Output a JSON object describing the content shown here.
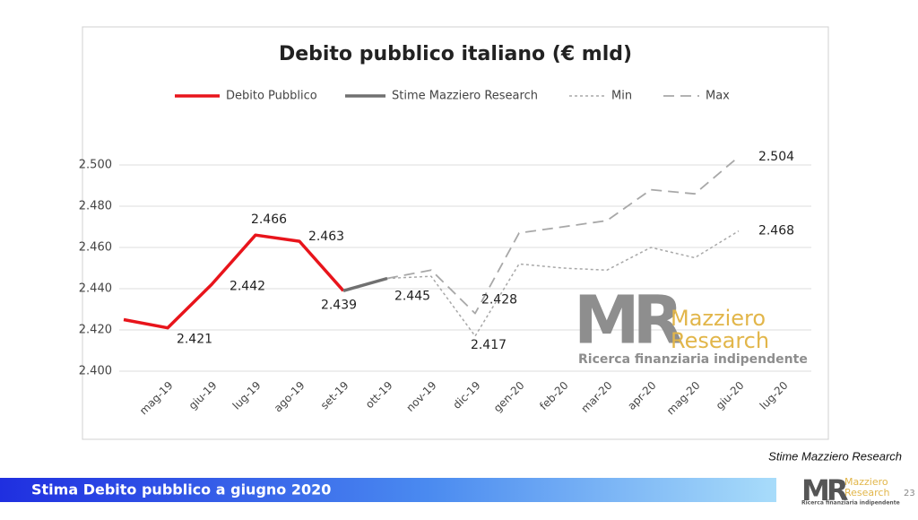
{
  "chart_data": {
    "type": "line",
    "title": "Debito pubblico italiano (€ mld)",
    "categories": [
      null,
      "mag-19",
      "giu-19",
      "lug-19",
      "ago-19",
      "set-19",
      "ott-19",
      "nov-19",
      "dic-19",
      "gen-20",
      "feb-20",
      "mar-20",
      "apr-20",
      "mag-20",
      "giu-20",
      "lug-20"
    ],
    "series": [
      {
        "name": "Debito Pubblico",
        "color": "#e8141b",
        "dash": "solid",
        "values": [
          2425,
          2421,
          2442,
          2466,
          2463,
          2439,
          null,
          null,
          null,
          null,
          null,
          null,
          null,
          null,
          null,
          null
        ],
        "value_labels": [
          null,
          "2.421",
          "2.442",
          "2.466",
          "2.463",
          "2.439",
          null,
          null,
          null,
          null,
          null,
          null,
          null,
          null,
          null,
          null
        ]
      },
      {
        "name": "Stime Mazziero Research",
        "color": "#707070",
        "dash": "solid",
        "values": [
          null,
          null,
          null,
          null,
          null,
          2439,
          2445,
          null,
          null,
          null,
          null,
          null,
          null,
          null,
          null,
          null
        ],
        "value_labels": [
          null,
          null,
          null,
          null,
          null,
          null,
          "2.445",
          null,
          null,
          null,
          null,
          null,
          null,
          null,
          null,
          null
        ]
      },
      {
        "name": "Min",
        "color": "#a8a8a8",
        "dash": "dotted",
        "values": [
          null,
          null,
          null,
          null,
          null,
          null,
          2445,
          2446,
          2417,
          2452,
          2450,
          2449,
          2460,
          2455,
          2468,
          null
        ],
        "value_labels": [
          null,
          null,
          null,
          null,
          null,
          null,
          null,
          null,
          "2.417",
          null,
          null,
          null,
          null,
          null,
          "2.468",
          null
        ]
      },
      {
        "name": "Max",
        "color": "#a8a8a8",
        "dash": "dashed",
        "values": [
          null,
          null,
          null,
          null,
          null,
          null,
          2445,
          2449,
          2428,
          2467,
          2470,
          2473,
          2488,
          2486,
          2504,
          null
        ],
        "value_labels": [
          null,
          null,
          null,
          null,
          null,
          null,
          null,
          null,
          "2.428",
          null,
          null,
          null,
          null,
          null,
          "2.504",
          null
        ]
      }
    ],
    "ylim": [
      2400,
      2510
    ],
    "yticks": [
      {
        "value": 2400,
        "label": "2.400"
      },
      {
        "value": 2420,
        "label": "2.420"
      },
      {
        "value": 2440,
        "label": "2.440"
      },
      {
        "value": 2460,
        "label": "2.460"
      },
      {
        "value": 2480,
        "label": "2.480"
      },
      {
        "value": 2500,
        "label": "2.500"
      }
    ],
    "grid": true,
    "legend": "top"
  },
  "logo": {
    "initials": "MR",
    "line1": "Mazziero",
    "line2": "Research",
    "tagline": "Ricerca finanziaria indipendente"
  },
  "footnote": "Stime Mazziero Research",
  "footer_title": "Stima Debito pubblico a giugno 2020",
  "page_number": "23"
}
